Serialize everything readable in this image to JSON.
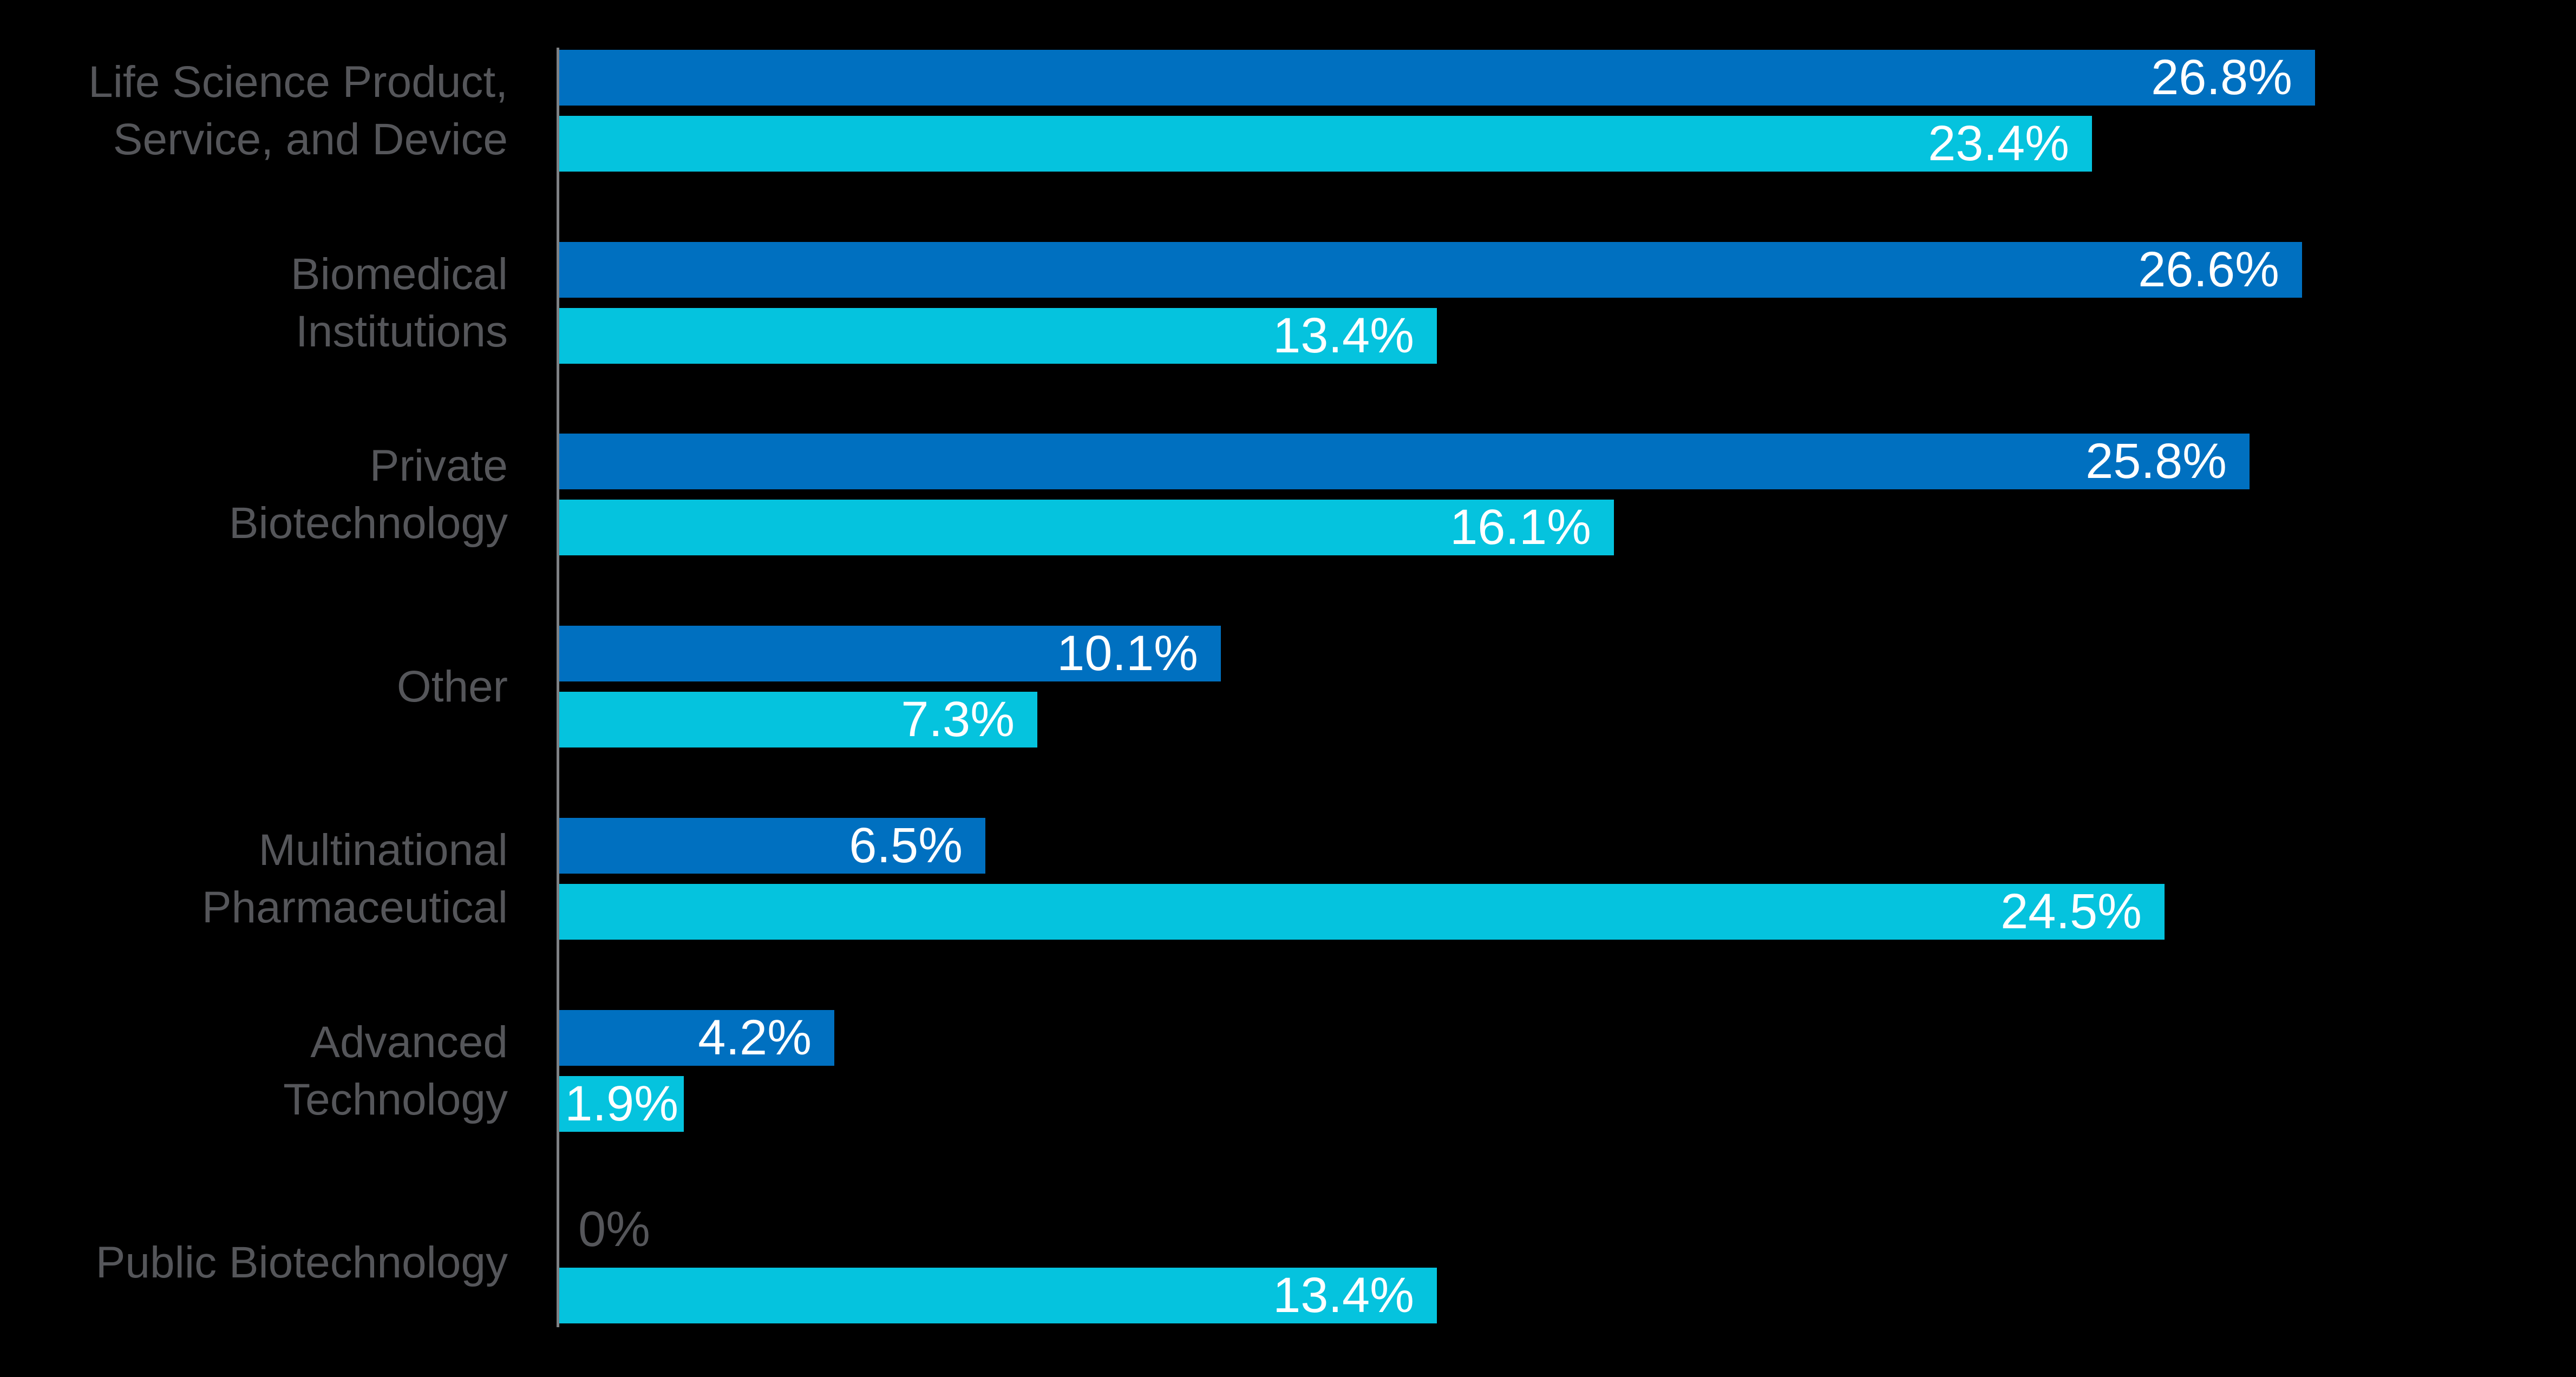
{
  "chart_data": {
    "type": "bar",
    "orientation": "horizontal",
    "title": "",
    "background": "#000000",
    "grid": "off",
    "legend": "none",
    "xlim": [
      0,
      30
    ],
    "categories": [
      [
        "Life Science Product,",
        "Service, and Device"
      ],
      [
        "Biomedical",
        "Institutions"
      ],
      [
        "Private",
        "Biotechnology"
      ],
      [
        "Other"
      ],
      [
        "Multinational",
        "Pharmaceutical"
      ],
      [
        "Advanced",
        "Technology"
      ],
      [
        "Public Biotechnology"
      ]
    ],
    "series": [
      {
        "name": "series-dark-blue",
        "color": "#0070C0",
        "values": [
          26.8,
          26.6,
          25.8,
          10.1,
          6.5,
          4.2,
          0
        ],
        "labels": [
          "26.8%",
          "26.6%",
          "25.8%",
          "10.1%",
          "6.5%",
          "4.2%",
          "0%"
        ]
      },
      {
        "name": "series-cyan",
        "color": "#05C3DE",
        "values": [
          23.4,
          13.4,
          16.1,
          7.3,
          24.5,
          1.9,
          13.4
        ],
        "labels": [
          "23.4%",
          "13.4%",
          "16.1%",
          "7.3%",
          "24.5%",
          "1.9%",
          "13.4%"
        ]
      }
    ],
    "value_label_color": "#FFFFFF",
    "zero_value_label_color": "#55565A",
    "category_label_color": "#55565A",
    "axis_line_color": "#7E8083"
  }
}
